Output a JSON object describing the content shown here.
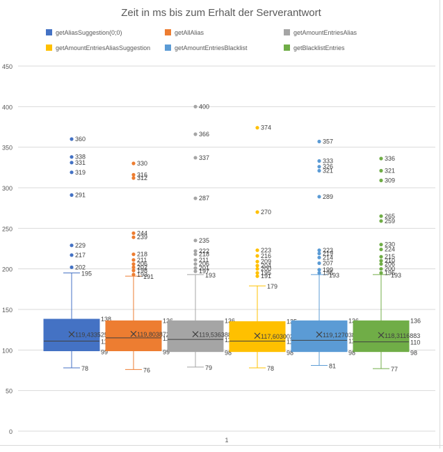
{
  "chart_data": {
    "type": "box",
    "title": "Zeit in ms bis zum Erhalt der Serverantwort",
    "ylim": [
      0,
      450
    ],
    "yticks": [
      0,
      50,
      100,
      150,
      200,
      250,
      300,
      350,
      400,
      450
    ],
    "categories": [
      "1"
    ],
    "legend_position": "top",
    "grid": true,
    "series": [
      {
        "name": "getAliasSuggestion(0;0)",
        "color": "#4472C4",
        "min": 78,
        "q1": 99,
        "median": 111,
        "q3": 138,
        "max": 195,
        "mean": 119.4335252,
        "mean_label": "119,4335252",
        "outliers": [
          202,
          217,
          229,
          291,
          319,
          331,
          338,
          360
        ],
        "outlier_labels": [
          "202",
          "217",
          "229",
          "291",
          "319",
          "331",
          "338",
          "360"
        ],
        "labels": {
          "min": "78",
          "q1": "99",
          "median": "111",
          "q3": "138",
          "max": "195"
        }
      },
      {
        "name": "getAllAlias",
        "color": "#ED7D31",
        "min": 76,
        "q1": 99,
        "median": 115,
        "q3": 136,
        "max": 191,
        "mean": 119.8038721,
        "mean_label": "119,8038721",
        "outliers": [
          193,
          198,
          202,
          206,
          211,
          218,
          239,
          244,
          312,
          316,
          330
        ],
        "outlier_labels": [
          "193",
          "198",
          "202",
          "206",
          "211",
          "218",
          "239",
          "244",
          "312",
          "316",
          "330"
        ],
        "labels": {
          "min": "76",
          "q1": "99",
          "median": "115",
          "q3": "136",
          "max": "191"
        }
      },
      {
        "name": "getAmountEntriesAlias",
        "color": "#A5A5A5",
        "min": 79,
        "q1": 98,
        "median": 113,
        "q3": 136,
        "max": 193,
        "mean": 119.5363881,
        "mean_label": "119,5363881",
        "outliers": [
          197,
          201,
          206,
          211,
          218,
          222,
          235,
          287,
          337,
          366,
          400
        ],
        "outlier_labels": [
          "197",
          "201",
          "206",
          "211",
          "218",
          "222",
          "235",
          "287",
          "337",
          "366",
          "400"
        ],
        "labels": {
          "min": "79",
          "q1": "98",
          "median": "113",
          "q3": "136",
          "max": "193"
        }
      },
      {
        "name": "getAmountEntriesAliasSuggestion",
        "color": "#FFC000",
        "min": 78,
        "q1": 98,
        "median": 111,
        "q3": 135,
        "max": 179,
        "mean": 117.6030025,
        "mean_label": "117,6030025",
        "outliers": [
          191,
          195,
          200,
          204,
          209,
          216,
          223,
          270,
          374
        ],
        "outlier_labels": [
          "191",
          "195",
          "200",
          "204",
          "209",
          "216",
          "223",
          "270",
          "374"
        ],
        "labels": {
          "min": "78",
          "q1": "98",
          "median": "111",
          "q3": "135",
          "max": "179"
        }
      },
      {
        "name": "getAmountEntriesBlacklist",
        "color": "#5B9BD5",
        "min": 81,
        "q1": 98,
        "median": 112,
        "q3": 136,
        "max": 193,
        "mean": 119.1270386,
        "mean_label": "119,1270386",
        "outliers": [
          195,
          199,
          207,
          214,
          219,
          223,
          289,
          321,
          326,
          333,
          357
        ],
        "outlier_labels": [
          "195",
          "199",
          "207",
          "214",
          "219",
          "223",
          "289",
          "321",
          "326",
          "333",
          "357"
        ],
        "labels": {
          "min": "81",
          "q1": "98",
          "median": "112",
          "q3": "136",
          "max": "193"
        }
      },
      {
        "name": "getBlacklistEntries",
        "color": "#70AD47",
        "min": 77,
        "q1": 98,
        "median": 110,
        "q3": 136,
        "max": 193,
        "mean": 118.3116883,
        "mean_label": "118,3116883",
        "outliers": [
          195,
          200,
          206,
          210,
          215,
          224,
          230,
          259,
          265,
          309,
          321,
          336
        ],
        "outlier_labels": [
          "195",
          "200",
          "206",
          "210",
          "215",
          "224",
          "230",
          "259",
          "265",
          "309",
          "321",
          "336"
        ],
        "labels": {
          "min": "77",
          "q1": "98",
          "median": "110",
          "q3": "136",
          "max": "193"
        }
      }
    ]
  }
}
